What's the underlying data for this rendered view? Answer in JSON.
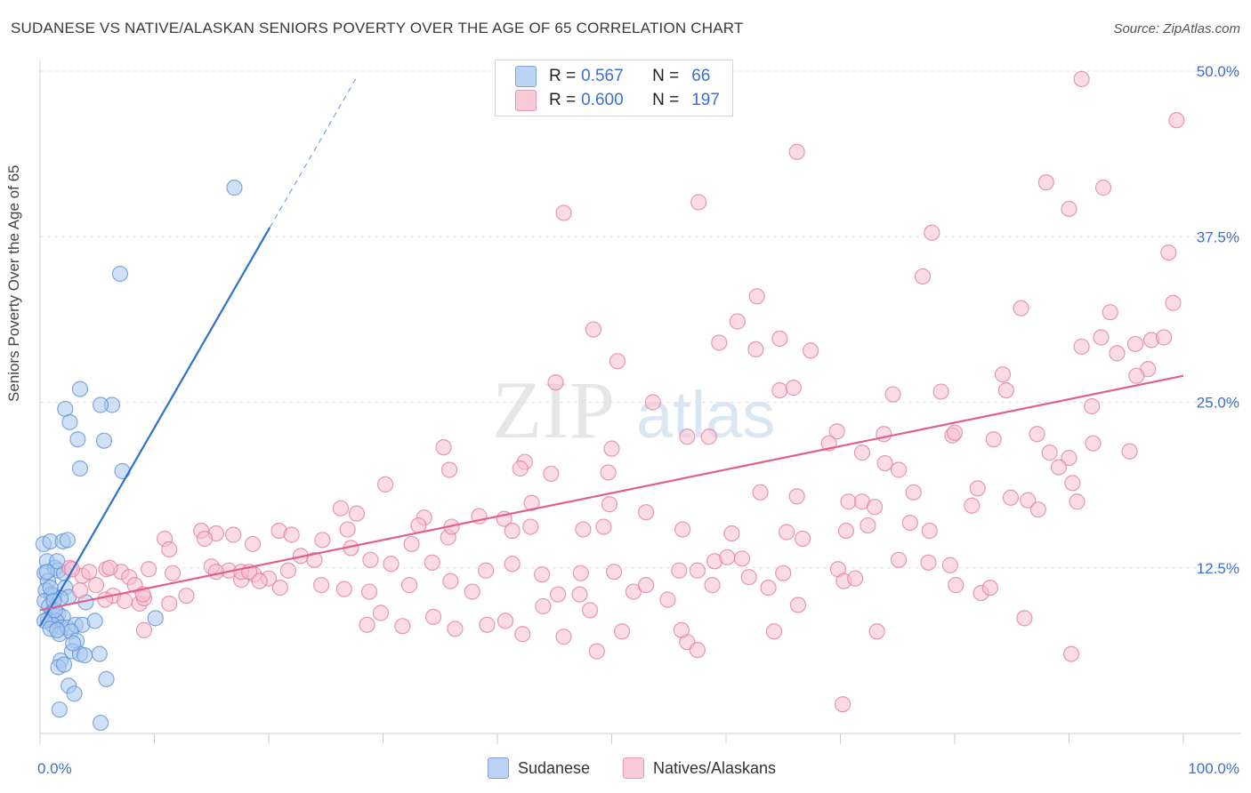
{
  "title": "SUDANESE VS NATIVE/ALASKAN SENIORS POVERTY OVER THE AGE OF 65 CORRELATION CHART",
  "source": "Source: ZipAtlas.com",
  "watermark": {
    "zip": "ZIP",
    "atlas": "atlas"
  },
  "legend": {
    "r_label": "R =",
    "n_label": "N =",
    "series": [
      {
        "name": "Sudanese",
        "r": "0.567",
        "n": "66",
        "fill": "#aac8f0",
        "stroke": "#5b8fd6"
      },
      {
        "name": "Natives/Alaskans",
        "r": "0.600",
        "n": "197",
        "fill": "#f8c0d0",
        "stroke": "#e07a9c"
      }
    ]
  },
  "chart_data": {
    "type": "scatter",
    "title": "SUDANESE VS NATIVE/ALASKAN SENIORS POVERTY OVER THE AGE OF 65 CORRELATION CHART",
    "xlabel": "",
    "ylabel": "Seniors Poverty Over the Age of 65",
    "xlim": [
      0,
      100
    ],
    "ylim": [
      0,
      50
    ],
    "x_tick_labels": [
      "0.0%",
      "100.0%"
    ],
    "y_ticks": [
      12.5,
      25.0,
      37.5,
      50.0
    ],
    "y_tick_labels": [
      "12.5%",
      "25.0%",
      "37.5%",
      "50.0%"
    ],
    "grid": true,
    "series": [
      {
        "name": "Sudanese",
        "color": "#5b8fd6",
        "fill": "#aac8f0",
        "trend": {
          "x0": 0,
          "y0": 8.1,
          "x1": 20.1,
          "y1": 38.2,
          "dash_x1": 27.6,
          "dash_y1": 49.4,
          "color": "#2f6fd0"
        },
        "points": [
          [
            0.3,
            14.3
          ],
          [
            0.6,
            13.0
          ],
          [
            0.9,
            14.5
          ],
          [
            0.4,
            12.1
          ],
          [
            0.7,
            11.5
          ],
          [
            0.5,
            10.8
          ],
          [
            1.0,
            10.5
          ],
          [
            0.4,
            10.0
          ],
          [
            0.8,
            9.6
          ],
          [
            1.2,
            10.4
          ],
          [
            1.1,
            9.2
          ],
          [
            1.6,
            9.0
          ],
          [
            2.0,
            8.8
          ],
          [
            0.7,
            8.6
          ],
          [
            1.4,
            8.5
          ],
          [
            1.1,
            8.2
          ],
          [
            0.4,
            8.5
          ],
          [
            1.9,
            8.0
          ],
          [
            0.9,
            7.9
          ],
          [
            1.7,
            7.5
          ],
          [
            1.3,
            12.5
          ],
          [
            1.6,
            12.3
          ],
          [
            2.1,
            12.1
          ],
          [
            1.5,
            13.0
          ],
          [
            2.0,
            14.5
          ],
          [
            2.4,
            14.6
          ],
          [
            2.2,
            11.0
          ],
          [
            2.5,
            10.3
          ],
          [
            1.8,
            10.2
          ],
          [
            1.3,
            9.3
          ],
          [
            2.4,
            8.0
          ],
          [
            3.1,
            8.2
          ],
          [
            3.7,
            8.2
          ],
          [
            2.7,
            7.7
          ],
          [
            4.0,
            9.9
          ],
          [
            3.2,
            7.0
          ],
          [
            2.8,
            6.2
          ],
          [
            1.8,
            5.5
          ],
          [
            3.5,
            6.0
          ],
          [
            1.6,
            5.0
          ],
          [
            2.1,
            5.2
          ],
          [
            2.5,
            3.6
          ],
          [
            3.0,
            3.0
          ],
          [
            1.7,
            1.8
          ],
          [
            5.8,
            4.1
          ],
          [
            5.3,
            0.8
          ],
          [
            4.8,
            8.5
          ],
          [
            2.2,
            24.5
          ],
          [
            3.5,
            26.0
          ],
          [
            3.3,
            22.2
          ],
          [
            2.6,
            23.5
          ],
          [
            3.5,
            20.0
          ],
          [
            6.3,
            24.8
          ],
          [
            5.3,
            24.8
          ],
          [
            5.6,
            22.1
          ],
          [
            7.2,
            19.8
          ],
          [
            5.2,
            6.0
          ],
          [
            3.9,
            5.9
          ],
          [
            10.1,
            8.7
          ],
          [
            7.0,
            34.7
          ],
          [
            17.0,
            41.2
          ],
          [
            0.6,
            12.2
          ],
          [
            0.9,
            11.0
          ],
          [
            1.2,
            10.0
          ],
          [
            2.9,
            6.8
          ],
          [
            1.5,
            7.8
          ]
        ]
      },
      {
        "name": "Natives/Alaskans",
        "color": "#e07a9c",
        "fill": "#f8c0d0",
        "trend": {
          "x0": 0,
          "y0": 9.3,
          "x1": 100,
          "y1": 27.0,
          "color": "#e0608c"
        },
        "points": [
          [
            91.1,
            49.4
          ],
          [
            99.4,
            46.3
          ],
          [
            66.2,
            43.9
          ],
          [
            88.0,
            41.6
          ],
          [
            93.0,
            41.2
          ],
          [
            90.0,
            39.6
          ],
          [
            57.6,
            40.1
          ],
          [
            45.8,
            39.3
          ],
          [
            78.0,
            37.8
          ],
          [
            98.7,
            36.3
          ],
          [
            77.2,
            34.5
          ],
          [
            62.7,
            33.0
          ],
          [
            85.8,
            32.1
          ],
          [
            99.1,
            32.5
          ],
          [
            93.6,
            31.8
          ],
          [
            61.0,
            31.1
          ],
          [
            48.4,
            30.5
          ],
          [
            92.8,
            29.9
          ],
          [
            64.7,
            29.8
          ],
          [
            59.4,
            29.5
          ],
          [
            62.6,
            29.0
          ],
          [
            91.1,
            29.2
          ],
          [
            95.8,
            29.4
          ],
          [
            67.4,
            28.9
          ],
          [
            94.2,
            28.7
          ],
          [
            97.2,
            29.7
          ],
          [
            98.3,
            29.9
          ],
          [
            50.5,
            28.1
          ],
          [
            96.9,
            27.5
          ],
          [
            95.9,
            27.0
          ],
          [
            84.2,
            27.1
          ],
          [
            45.1,
            26.5
          ],
          [
            64.7,
            25.9
          ],
          [
            65.9,
            26.1
          ],
          [
            74.6,
            25.6
          ],
          [
            78.8,
            25.8
          ],
          [
            84.5,
            25.9
          ],
          [
            53.6,
            25.0
          ],
          [
            79.8,
            22.5
          ],
          [
            87.2,
            22.6
          ],
          [
            92.0,
            24.7
          ],
          [
            56.6,
            22.4
          ],
          [
            58.5,
            22.4
          ],
          [
            69.7,
            22.8
          ],
          [
            73.8,
            22.6
          ],
          [
            69.0,
            21.9
          ],
          [
            35.3,
            21.6
          ],
          [
            50.0,
            21.5
          ],
          [
            42.4,
            20.5
          ],
          [
            71.9,
            21.2
          ],
          [
            80.0,
            22.7
          ],
          [
            83.4,
            22.2
          ],
          [
            92.1,
            21.9
          ],
          [
            95.3,
            21.3
          ],
          [
            90.0,
            20.8
          ],
          [
            88.3,
            21.2
          ],
          [
            73.9,
            20.4
          ],
          [
            75.1,
            19.9
          ],
          [
            89.1,
            20.1
          ],
          [
            35.8,
            19.9
          ],
          [
            42.0,
            20.0
          ],
          [
            44.7,
            19.6
          ],
          [
            49.7,
            19.7
          ],
          [
            63.0,
            18.2
          ],
          [
            66.2,
            17.9
          ],
          [
            30.2,
            18.8
          ],
          [
            40.6,
            16.2
          ],
          [
            53.0,
            16.7
          ],
          [
            43.0,
            17.4
          ],
          [
            49.8,
            17.3
          ],
          [
            70.7,
            17.5
          ],
          [
            71.9,
            17.5
          ],
          [
            73.0,
            17.1
          ],
          [
            76.4,
            18.2
          ],
          [
            81.5,
            17.2
          ],
          [
            82.0,
            18.5
          ],
          [
            84.9,
            17.8
          ],
          [
            86.4,
            17.6
          ],
          [
            87.3,
            16.9
          ],
          [
            90.7,
            17.5
          ],
          [
            90.3,
            18.9
          ],
          [
            26.3,
            17.0
          ],
          [
            27.7,
            16.6
          ],
          [
            33.6,
            16.3
          ],
          [
            33.1,
            15.7
          ],
          [
            35.7,
            14.8
          ],
          [
            38.4,
            16.4
          ],
          [
            20.9,
            15.3
          ],
          [
            22.0,
            15.0
          ],
          [
            26.9,
            15.4
          ],
          [
            24.7,
            14.6
          ],
          [
            27.2,
            14.0
          ],
          [
            36.0,
            15.6
          ],
          [
            41.3,
            15.3
          ],
          [
            42.9,
            15.6
          ],
          [
            47.5,
            15.4
          ],
          [
            49.3,
            15.6
          ],
          [
            56.2,
            15.4
          ],
          [
            60.5,
            15.1
          ],
          [
            65.3,
            15.2
          ],
          [
            66.7,
            14.7
          ],
          [
            70.5,
            15.3
          ],
          [
            72.4,
            15.7
          ],
          [
            76.1,
            15.9
          ],
          [
            77.8,
            15.3
          ],
          [
            10.9,
            14.7
          ],
          [
            14.1,
            15.3
          ],
          [
            15.4,
            15.1
          ],
          [
            16.9,
            15.0
          ],
          [
            18.6,
            14.3
          ],
          [
            14.4,
            14.7
          ],
          [
            11.3,
            13.9
          ],
          [
            32.5,
            14.3
          ],
          [
            22.8,
            13.4
          ],
          [
            21.7,
            12.3
          ],
          [
            24.0,
            13.1
          ],
          [
            28.9,
            13.1
          ],
          [
            30.7,
            12.8
          ],
          [
            34.3,
            12.9
          ],
          [
            41.3,
            12.8
          ],
          [
            39.0,
            12.3
          ],
          [
            43.9,
            12.0
          ],
          [
            47.3,
            12.1
          ],
          [
            50.2,
            12.2
          ],
          [
            55.9,
            12.3
          ],
          [
            57.5,
            12.3
          ],
          [
            59.0,
            13.0
          ],
          [
            60.1,
            13.3
          ],
          [
            62.0,
            11.8
          ],
          [
            69.8,
            12.4
          ],
          [
            75.1,
            13.1
          ],
          [
            77.7,
            12.9
          ],
          [
            80.1,
            11.2
          ],
          [
            82.3,
            10.6
          ],
          [
            83.1,
            11.0
          ],
          [
            9.5,
            12.4
          ],
          [
            11.6,
            12.1
          ],
          [
            15.0,
            12.6
          ],
          [
            16.5,
            12.3
          ],
          [
            17.6,
            11.6
          ],
          [
            18.7,
            12.0
          ],
          [
            20.0,
            11.7
          ],
          [
            24.6,
            11.2
          ],
          [
            26.6,
            10.9
          ],
          [
            28.8,
            10.7
          ],
          [
            32.3,
            11.2
          ],
          [
            35.9,
            11.5
          ],
          [
            37.8,
            10.7
          ],
          [
            45.3,
            10.5
          ],
          [
            47.2,
            10.5
          ],
          [
            51.9,
            10.7
          ],
          [
            53.0,
            11.2
          ],
          [
            54.9,
            10.1
          ],
          [
            58.8,
            11.2
          ],
          [
            63.7,
            11.0
          ],
          [
            65.0,
            12.1
          ],
          [
            70.3,
            11.5
          ],
          [
            71.3,
            11.7
          ],
          [
            7.1,
            12.2
          ],
          [
            7.8,
            11.8
          ],
          [
            8.3,
            11.2
          ],
          [
            6.4,
            10.4
          ],
          [
            7.4,
            10.0
          ],
          [
            8.7,
            9.8
          ],
          [
            9.1,
            10.2
          ],
          [
            11.3,
            9.8
          ],
          [
            12.8,
            10.4
          ],
          [
            15.4,
            12.2
          ],
          [
            17.6,
            12.2
          ],
          [
            18.3,
            12.2
          ],
          [
            3.7,
            11.9
          ],
          [
            4.3,
            12.2
          ],
          [
            4.9,
            11.2
          ],
          [
            5.7,
            10.1
          ],
          [
            5.8,
            12.4
          ],
          [
            2.6,
            12.5
          ],
          [
            3.5,
            10.8
          ],
          [
            6.1,
            12.5
          ],
          [
            29.8,
            9.1
          ],
          [
            34.4,
            8.8
          ],
          [
            40.7,
            8.5
          ],
          [
            44.0,
            9.6
          ],
          [
            48.1,
            9.3
          ],
          [
            28.6,
            8.2
          ],
          [
            31.7,
            8.1
          ],
          [
            36.3,
            7.9
          ],
          [
            39.1,
            8.2
          ],
          [
            42.2,
            7.5
          ],
          [
            45.8,
            7.3
          ],
          [
            50.9,
            7.7
          ],
          [
            56.6,
            6.9
          ],
          [
            57.5,
            6.3
          ],
          [
            64.2,
            7.7
          ],
          [
            9.1,
            7.8
          ],
          [
            56.1,
            7.8
          ],
          [
            48.7,
            6.2
          ],
          [
            73.2,
            7.7
          ],
          [
            86.1,
            8.7
          ],
          [
            90.2,
            6.0
          ],
          [
            70.2,
            2.2
          ],
          [
            2.8,
            12.4
          ],
          [
            9.0,
            10.5
          ],
          [
            19.2,
            11.5
          ],
          [
            21.0,
            11.0
          ],
          [
            61.4,
            13.2
          ],
          [
            66.3,
            9.7
          ],
          [
            79.6,
            12.7
          ]
        ]
      }
    ]
  }
}
